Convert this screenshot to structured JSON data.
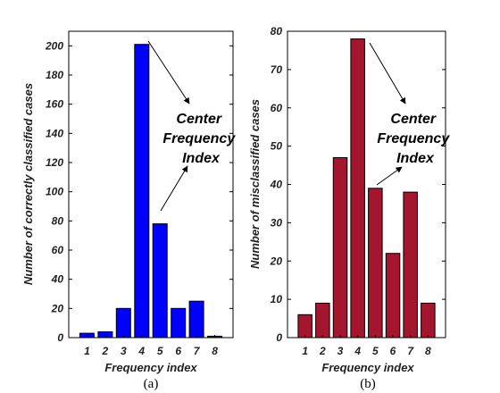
{
  "chart_data": [
    {
      "type": "bar",
      "categories": [
        "1",
        "2",
        "3",
        "4",
        "5",
        "6",
        "7",
        "8"
      ],
      "values": [
        3,
        4,
        20,
        201,
        78,
        20,
        25,
        1
      ],
      "xlabel": "Frequency index",
      "ylabel": "Number of correctly classified cases",
      "ylim": [
        0,
        210
      ],
      "yticks": [
        "0",
        "20",
        "40",
        "60",
        "80",
        "100",
        "120",
        "140",
        "160",
        "180",
        "200"
      ],
      "bar_color": "#0000ff",
      "panel_label": "(a)",
      "annotation": [
        "Center",
        "Frequency",
        "Index"
      ],
      "grid": false
    },
    {
      "type": "bar",
      "categories": [
        "1",
        "2",
        "3",
        "4",
        "5",
        "6",
        "7",
        "8"
      ],
      "values": [
        6,
        9,
        47,
        78,
        39,
        22,
        38,
        9
      ],
      "xlabel": "Frequency index",
      "ylabel": "Number of misclassified cases",
      "ylim": [
        0,
        80
      ],
      "yticks": [
        "0",
        "10",
        "20",
        "30",
        "40",
        "50",
        "60",
        "70",
        "80"
      ],
      "bar_color": "#a3162e",
      "panel_label": "(b)",
      "annotation": [
        "Center",
        "Frequency",
        "Index"
      ],
      "grid": false
    }
  ]
}
